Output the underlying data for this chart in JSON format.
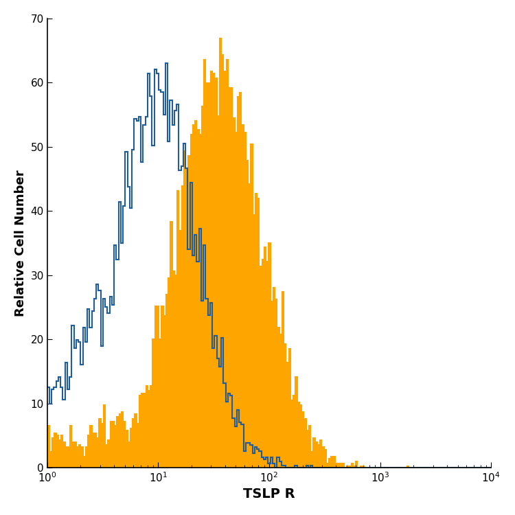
{
  "title": "",
  "xlabel": "TSLP R",
  "ylabel": "Relative Cell Number",
  "xlim_log": [
    1,
    10000
  ],
  "ylim": [
    0,
    70
  ],
  "yticks": [
    0,
    10,
    20,
    30,
    40,
    50,
    60,
    70
  ],
  "background_color": "#ffffff",
  "orange_color": "#FFA500",
  "blue_color": "#1F5C99",
  "orange_alpha": 1.0,
  "blue_linewidth": 1.5,
  "orange_linewidth": 0.8,
  "xlabel_fontsize": 14,
  "ylabel_fontsize": 13,
  "tick_fontsize": 11
}
